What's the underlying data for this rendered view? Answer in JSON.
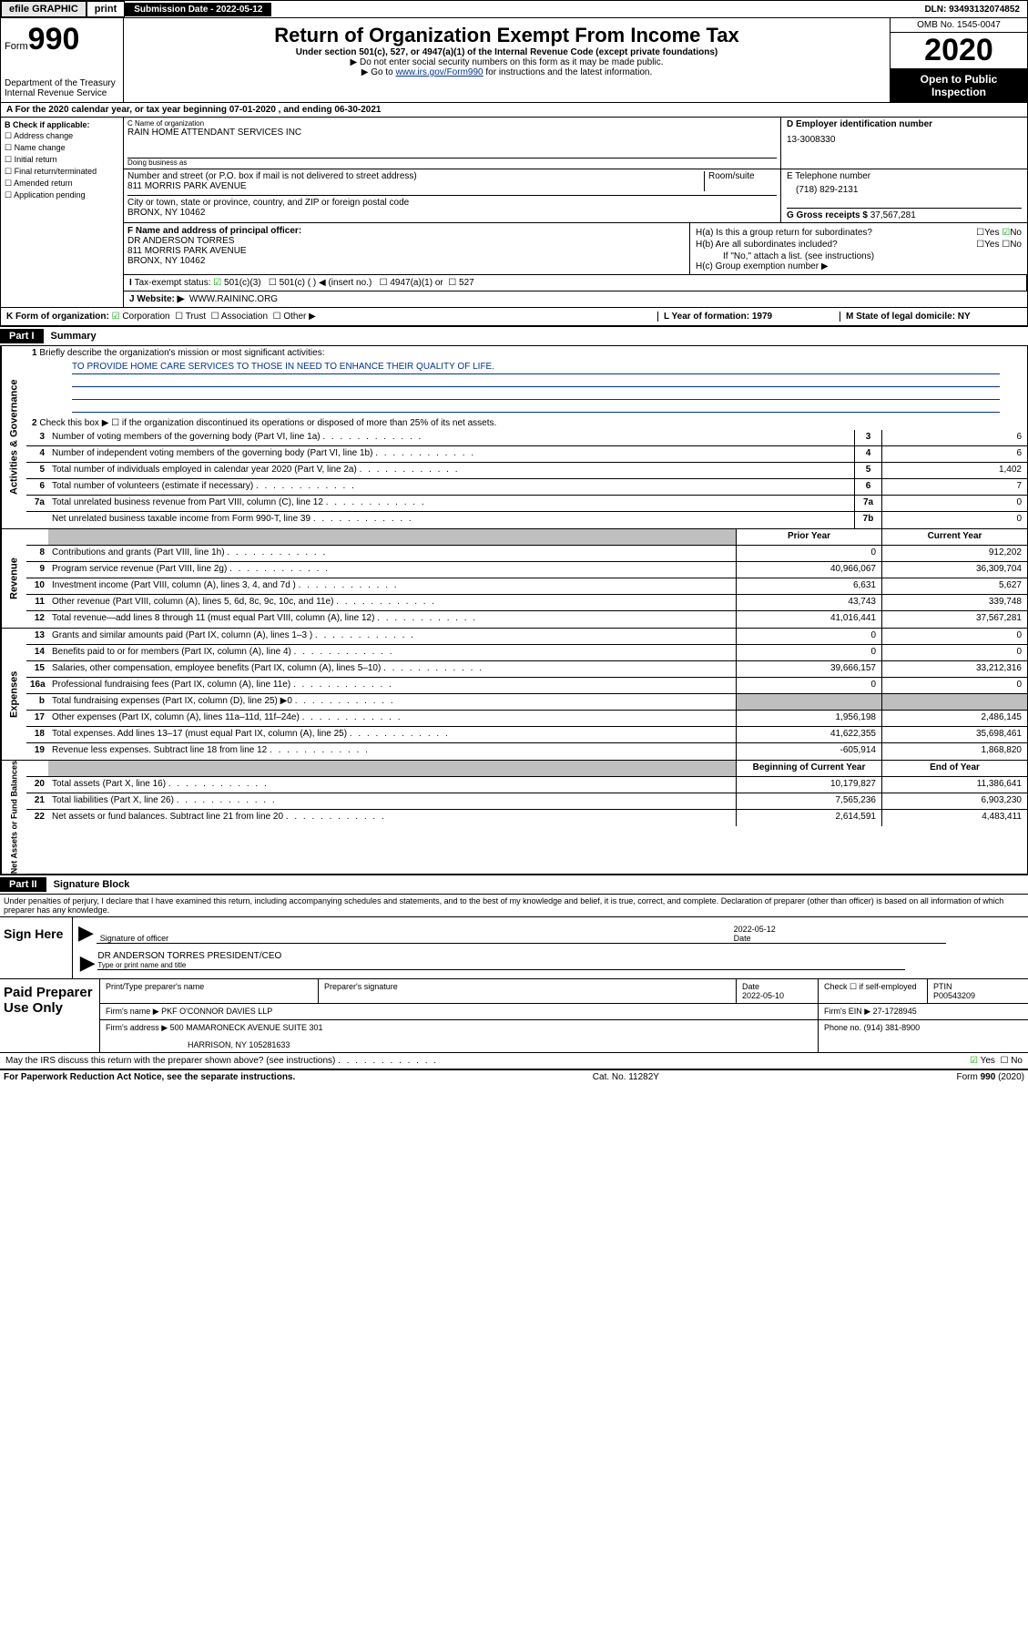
{
  "topbar": {
    "efile": "efile GRAPHIC",
    "print": "print",
    "subdate_label": "Submission Date",
    "subdate": "2022-05-12",
    "dln_label": "DLN:",
    "dln": "93493132074852"
  },
  "header": {
    "form_word": "Form",
    "form_num": "990",
    "dept": "Department of the Treasury\nInternal Revenue Service",
    "title": "Return of Organization Exempt From Income Tax",
    "sub1": "Under section 501(c), 527, or 4947(a)(1) of the Internal Revenue Code (except private foundations)",
    "sub2": "▶ Do not enter social security numbers on this form as it may be made public.",
    "sub3_pre": "▶ Go to ",
    "sub3_link": "www.irs.gov/Form990",
    "sub3_post": " for instructions and the latest information.",
    "omb": "OMB No. 1545-0047",
    "year": "2020",
    "open": "Open to Public Inspection"
  },
  "row_a": {
    "text": "For the 2020 calendar year, or tax year beginning 07-01-2020    , and ending 06-30-2021"
  },
  "col_b": {
    "label": "B Check if applicable:",
    "items": [
      "Address change",
      "Name change",
      "Initial return",
      "Final return/terminated",
      "Amended return",
      "Application pending"
    ]
  },
  "col_c": {
    "name_lbl": "C Name of organization",
    "name": "RAIN HOME ATTENDANT SERVICES INC",
    "dba_lbl": "Doing business as",
    "dba": "",
    "addr_lbl": "Number and street (or P.O. box if mail is not delivered to street address)",
    "addr": "811 MORRIS PARK AVENUE",
    "room_lbl": "Room/suite",
    "city_lbl": "City or town, state or province, country, and ZIP or foreign postal code",
    "city": "BRONX, NY  10462"
  },
  "col_d": {
    "ein_lbl": "D Employer identification number",
    "ein": "13-3008330"
  },
  "col_e": {
    "tel_lbl": "E Telephone number",
    "tel": "(718) 829-2131"
  },
  "col_g": {
    "gross_lbl": "G Gross receipts $",
    "gross": "37,567,281"
  },
  "col_f": {
    "lbl": "F Name and address of principal officer:",
    "name": "DR ANDERSON TORRES",
    "addr1": "811 MORRIS PARK AVENUE",
    "addr2": "BRONX, NY  10462"
  },
  "col_h": {
    "ha": "H(a)  Is this a group return for subordinates?",
    "hb": "H(b)  Are all subordinates included?",
    "hb_note": "If \"No,\" attach a list. (see instructions)",
    "hc": "H(c)  Group exemption number ▶",
    "yes": "Yes",
    "no": "No"
  },
  "col_i": {
    "lbl": "Tax-exempt status:",
    "opts": [
      "501(c)(3)",
      "501(c) (   ) ◀ (insert no.)",
      "4947(a)(1) or",
      "527"
    ]
  },
  "col_j": {
    "lbl": "Website: ▶",
    "val": "WWW.RAININC.ORG"
  },
  "row_k": {
    "k": "K Form of organization:",
    "opts": [
      "Corporation",
      "Trust",
      "Association",
      "Other ▶"
    ],
    "l": "L Year of formation: 1979",
    "m": "M State of legal domicile: NY"
  },
  "parts": {
    "p1": "Part I",
    "p1t": "Summary",
    "p2": "Part II",
    "p2t": "Signature Block"
  },
  "summary": {
    "l1": "Briefly describe the organization's mission or most significant activities:",
    "mission": "TO PROVIDE HOME CARE SERVICES TO THOSE IN NEED TO ENHANCE THEIR QUALITY OF LIFE.",
    "l2": "Check this box ▶ ☐  if the organization discontinued its operations or disposed of more than 25% of its net assets.",
    "rows_ag": [
      {
        "n": "3",
        "d": "Number of voting members of the governing body (Part VI, line 1a)",
        "rn": "3",
        "v": "6"
      },
      {
        "n": "4",
        "d": "Number of independent voting members of the governing body (Part VI, line 1b)",
        "rn": "4",
        "v": "6"
      },
      {
        "n": "5",
        "d": "Total number of individuals employed in calendar year 2020 (Part V, line 2a)",
        "rn": "5",
        "v": "1,402"
      },
      {
        "n": "6",
        "d": "Total number of volunteers (estimate if necessary)",
        "rn": "6",
        "v": "7"
      },
      {
        "n": "7a",
        "d": "Total unrelated business revenue from Part VIII, column (C), line 12",
        "rn": "7a",
        "v": "0"
      },
      {
        "n": "",
        "d": "Net unrelated business taxable income from Form 990-T, line 39",
        "rn": "7b",
        "v": "0"
      }
    ],
    "hdr_prior": "Prior Year",
    "hdr_curr": "Current Year",
    "hdr_boy": "Beginning of Current Year",
    "hdr_eoy": "End of Year",
    "rows_rev": [
      {
        "n": "8",
        "d": "Contributions and grants (Part VIII, line 1h)",
        "p": "0",
        "c": "912,202"
      },
      {
        "n": "9",
        "d": "Program service revenue (Part VIII, line 2g)",
        "p": "40,966,067",
        "c": "36,309,704"
      },
      {
        "n": "10",
        "d": "Investment income (Part VIII, column (A), lines 3, 4, and 7d )",
        "p": "6,631",
        "c": "5,627"
      },
      {
        "n": "11",
        "d": "Other revenue (Part VIII, column (A), lines 5, 6d, 8c, 9c, 10c, and 11e)",
        "p": "43,743",
        "c": "339,748"
      },
      {
        "n": "12",
        "d": "Total revenue—add lines 8 through 11 (must equal Part VIII, column (A), line 12)",
        "p": "41,016,441",
        "c": "37,567,281"
      }
    ],
    "rows_exp": [
      {
        "n": "13",
        "d": "Grants and similar amounts paid (Part IX, column (A), lines 1–3 )",
        "p": "0",
        "c": "0"
      },
      {
        "n": "14",
        "d": "Benefits paid to or for members (Part IX, column (A), line 4)",
        "p": "0",
        "c": "0"
      },
      {
        "n": "15",
        "d": "Salaries, other compensation, employee benefits (Part IX, column (A), lines 5–10)",
        "p": "39,666,157",
        "c": "33,212,316"
      },
      {
        "n": "16a",
        "d": "Professional fundraising fees (Part IX, column (A), line 11e)",
        "p": "0",
        "c": "0"
      },
      {
        "n": "b",
        "d": "Total fundraising expenses (Part IX, column (D), line 25) ▶0",
        "p": "grey",
        "c": "grey"
      },
      {
        "n": "17",
        "d": "Other expenses (Part IX, column (A), lines 11a–11d, 11f–24e)",
        "p": "1,956,198",
        "c": "2,486,145"
      },
      {
        "n": "18",
        "d": "Total expenses. Add lines 13–17 (must equal Part IX, column (A), line 25)",
        "p": "41,622,355",
        "c": "35,698,461"
      },
      {
        "n": "19",
        "d": "Revenue less expenses. Subtract line 18 from line 12",
        "p": "-605,914",
        "c": "1,868,820"
      }
    ],
    "rows_na": [
      {
        "n": "20",
        "d": "Total assets (Part X, line 16)",
        "p": "10,179,827",
        "c": "11,386,641"
      },
      {
        "n": "21",
        "d": "Total liabilities (Part X, line 26)",
        "p": "7,565,236",
        "c": "6,903,230"
      },
      {
        "n": "22",
        "d": "Net assets or fund balances. Subtract line 21 from line 20",
        "p": "2,614,591",
        "c": "4,483,411"
      }
    ]
  },
  "sidetabs": {
    "ag": "Activities & Governance",
    "rev": "Revenue",
    "exp": "Expenses",
    "na": "Net Assets or Fund Balances"
  },
  "sig": {
    "perjury": "Under penalties of perjury, I declare that I have examined this return, including accompanying schedules and statements, and to the best of my knowledge and belief, it is true, correct, and complete. Declaration of preparer (other than officer) is based on all information of which preparer has any knowledge.",
    "sign_here": "Sign Here",
    "sig_officer": "Signature of officer",
    "date_lbl": "Date",
    "sig_date": "2022-05-12",
    "officer_name": "DR ANDERSON TORRES  PRESIDENT/CEO",
    "type_name": "Type or print name and title"
  },
  "paid": {
    "title": "Paid Preparer Use Only",
    "h_name": "Print/Type preparer's name",
    "h_sig": "Preparer's signature",
    "h_date": "Date",
    "date": "2022-05-10",
    "check_self": "Check ☐ if self-employed",
    "ptin_lbl": "PTIN",
    "ptin": "P00543209",
    "firm_name_lbl": "Firm's name   ▶",
    "firm_name": "PKF O'CONNOR DAVIES LLP",
    "firm_ein_lbl": "Firm's EIN ▶",
    "firm_ein": "27-1728945",
    "firm_addr_lbl": "Firm's address ▶",
    "firm_addr1": "500 MAMARONECK AVENUE SUITE 301",
    "firm_addr2": "HARRISON, NY  105281633",
    "phone_lbl": "Phone no.",
    "phone": "(914) 381-8900"
  },
  "footer": {
    "discuss": "May the IRS discuss this return with the preparer shown above? (see instructions)",
    "yes": "Yes",
    "no": "No",
    "pra": "For Paperwork Reduction Act Notice, see the separate instructions.",
    "cat": "Cat. No. 11282Y",
    "form": "Form 990 (2020)"
  },
  "colors": {
    "link": "#003399",
    "black": "#000000",
    "white": "#ffffff",
    "grey": "#bfbfbf",
    "check": "#00a000"
  }
}
